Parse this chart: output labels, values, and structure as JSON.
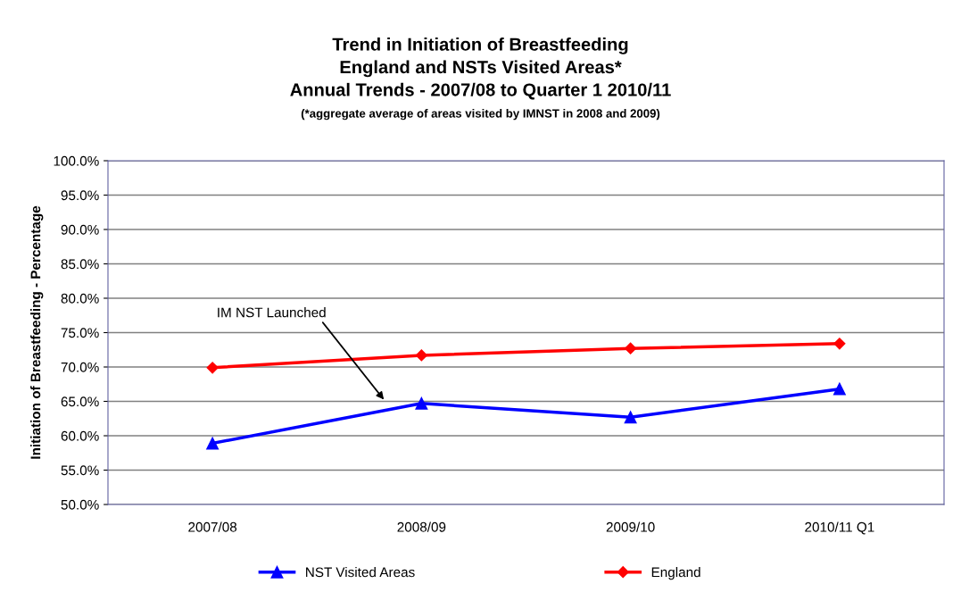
{
  "chart_data": {
    "type": "line",
    "title": "Trend in Initiation of Breastfeeding\nEngland and NSTs Visited Areas*\nAnnual Trends - 2007/08 to Quarter 1 2010/11",
    "subtitle": "(*aggregate average of areas visited by IMNST in 2008 and 2009)",
    "ylabel": "Initiation of Breastfeeding - Percentage",
    "categories": [
      "2007/08",
      "2008/09",
      "2009/10",
      "2010/11 Q1"
    ],
    "series": [
      {
        "name": "NST Visited Areas",
        "color": "#0000ff",
        "marker": "triangle",
        "values": [
          58.9,
          64.7,
          62.7,
          66.8
        ]
      },
      {
        "name": "England",
        "color": "#ff0000",
        "marker": "diamond",
        "values": [
          69.9,
          71.7,
          72.7,
          73.4
        ]
      }
    ],
    "ylim": [
      50,
      100
    ],
    "yticks": [
      {
        "value": 50,
        "label": "50.0%"
      },
      {
        "value": 55,
        "label": "55.0%"
      },
      {
        "value": 60,
        "label": "60.0%"
      },
      {
        "value": 65,
        "label": "65.0%"
      },
      {
        "value": 70,
        "label": "70.0%"
      },
      {
        "value": 75,
        "label": "75.0%"
      },
      {
        "value": 80,
        "label": "80.0%"
      },
      {
        "value": 85,
        "label": "85.0%"
      },
      {
        "value": 90,
        "label": "90.0%"
      },
      {
        "value": 95,
        "label": "95.0%"
      },
      {
        "value": 100,
        "label": "100.0%"
      }
    ],
    "annotations": [
      "IM NST Launched"
    ],
    "grid": "y",
    "legend": "bottom",
    "line_style": "solid"
  }
}
